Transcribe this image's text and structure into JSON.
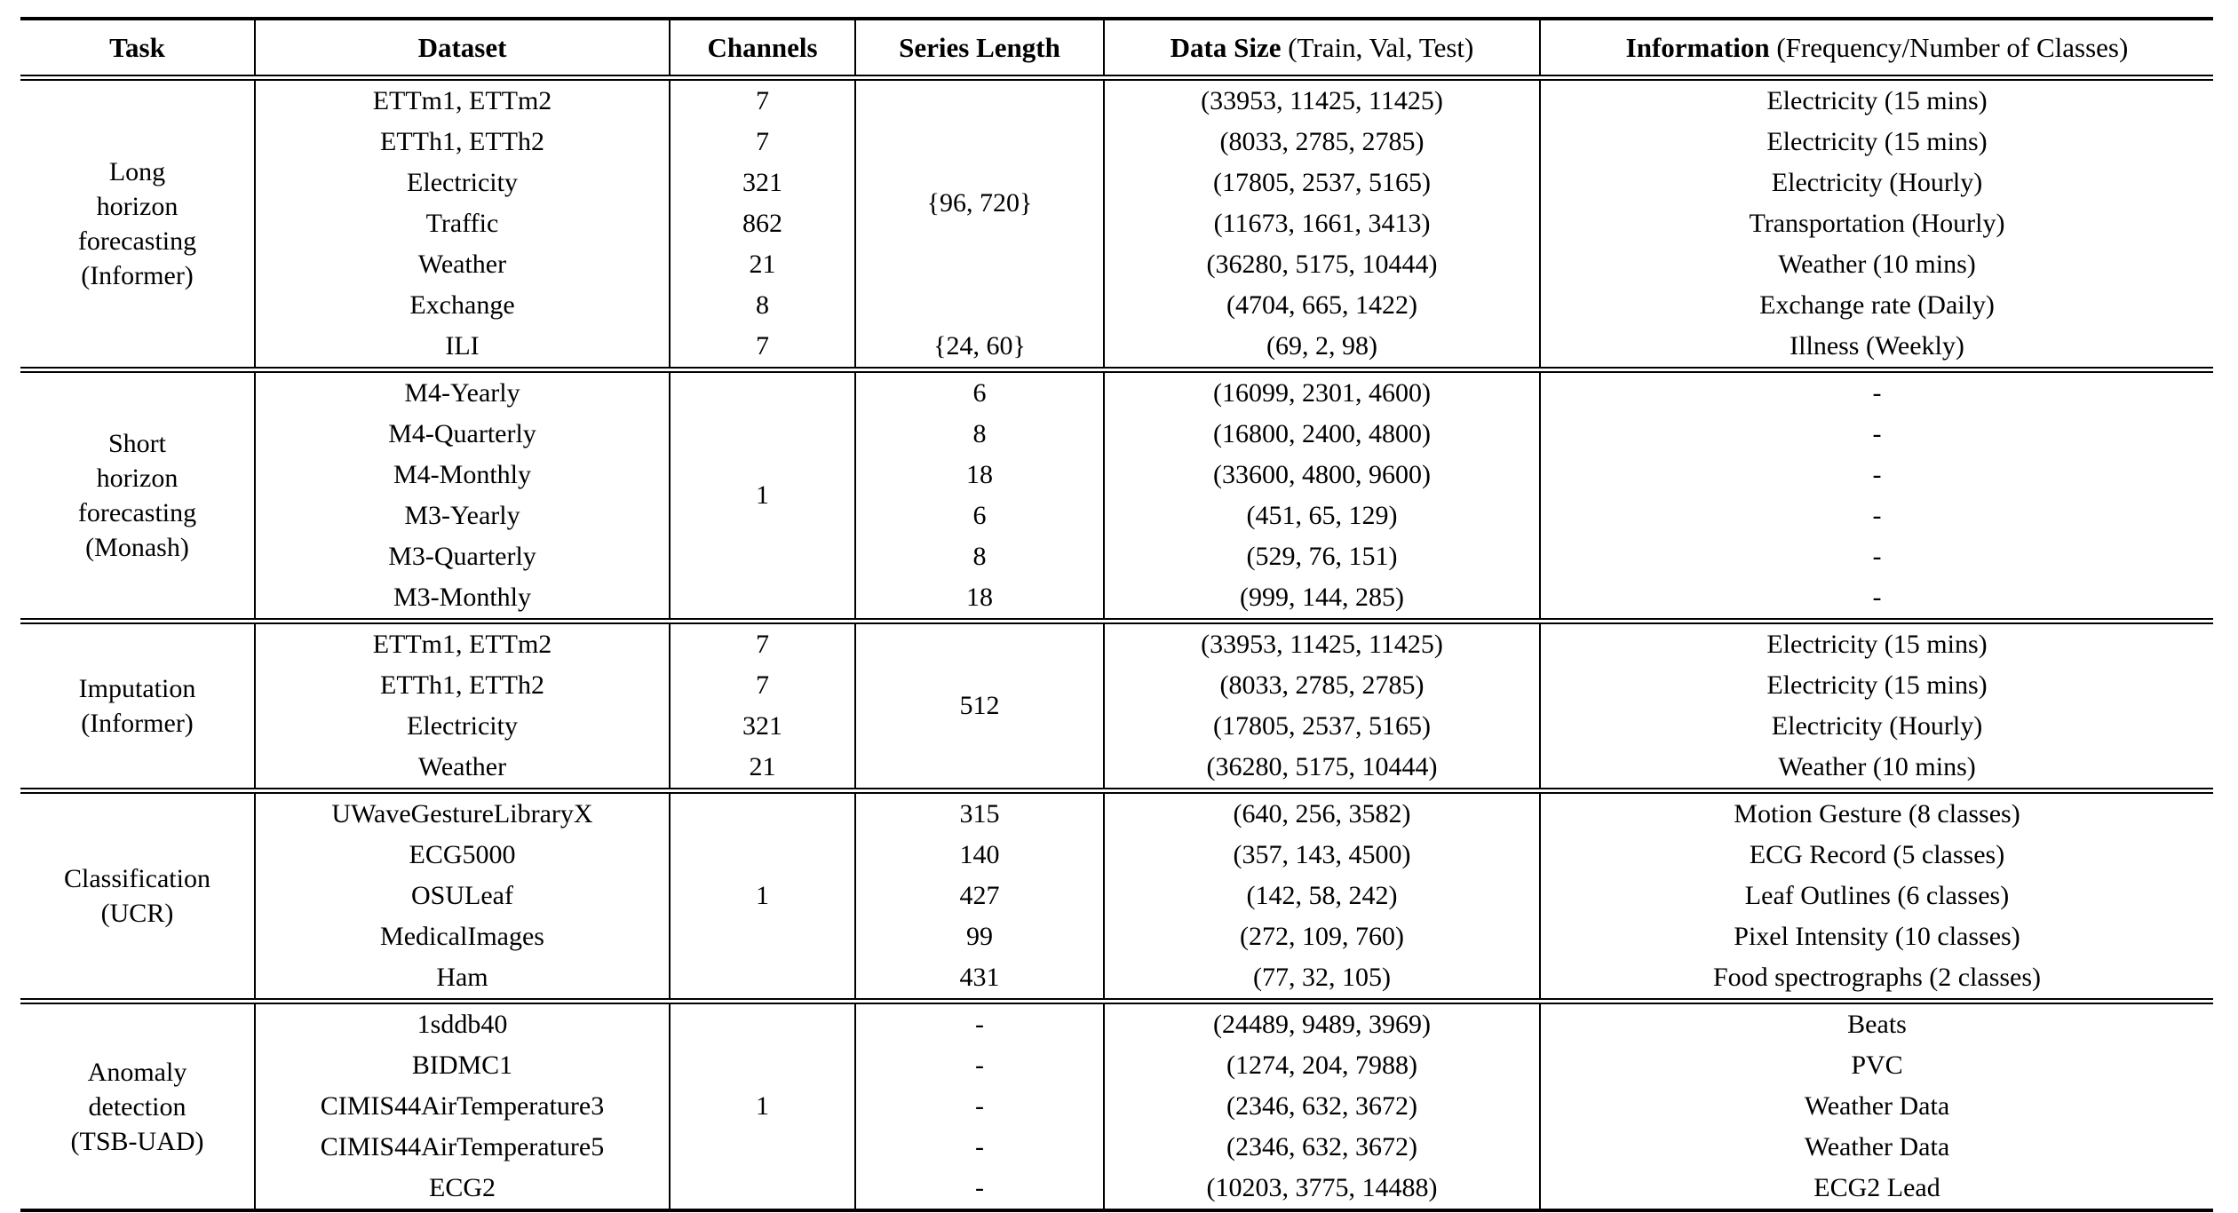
{
  "colors": {
    "background": "#ffffff",
    "text": "#000000",
    "rule": "#000000"
  },
  "table": {
    "header": [
      {
        "bold": "Task",
        "normal": ""
      },
      {
        "bold": "Dataset",
        "normal": ""
      },
      {
        "bold": "Channels",
        "normal": ""
      },
      {
        "bold": "Series Length",
        "normal": ""
      },
      {
        "bold": "Data Size",
        "normal": " (Train, Val, Test)"
      },
      {
        "bold": "Information",
        "normal": " (Frequency/Number of Classes)"
      }
    ],
    "sections": [
      {
        "task_lines": [
          "Long",
          "horizon",
          "forecasting",
          "(Informer)"
        ],
        "rows": 7,
        "columns": {
          "dataset": [
            {
              "t": "ETTm1, ETTm2",
              "s": 1
            },
            {
              "t": "ETTh1, ETTh2",
              "s": 1
            },
            {
              "t": "Electricity",
              "s": 1
            },
            {
              "t": "Traffic",
              "s": 1
            },
            {
              "t": "Weather",
              "s": 1
            },
            {
              "t": "Exchange",
              "s": 1
            },
            {
              "t": "ILI",
              "s": 1
            }
          ],
          "channels": [
            {
              "t": "7",
              "s": 1
            },
            {
              "t": "7",
              "s": 1
            },
            {
              "t": "321",
              "s": 1
            },
            {
              "t": "862",
              "s": 1
            },
            {
              "t": "21",
              "s": 1
            },
            {
              "t": "8",
              "s": 1
            },
            {
              "t": "7",
              "s": 1
            }
          ],
          "series": [
            {
              "t": "{96, 720}",
              "s": 6
            },
            {
              "t": "{24, 60}",
              "s": 1
            }
          ],
          "size": [
            {
              "t": "(33953, 11425, 11425)",
              "s": 1
            },
            {
              "t": "(8033, 2785, 2785)",
              "s": 1
            },
            {
              "t": "(17805, 2537, 5165)",
              "s": 1
            },
            {
              "t": "(11673, 1661, 3413)",
              "s": 1
            },
            {
              "t": "(36280, 5175, 10444)",
              "s": 1
            },
            {
              "t": "(4704, 665, 1422)",
              "s": 1
            },
            {
              "t": "(69, 2, 98)",
              "s": 1
            }
          ],
          "info": [
            {
              "t": "Electricity (15 mins)",
              "s": 1
            },
            {
              "t": "Electricity (15 mins)",
              "s": 1
            },
            {
              "t": "Electricity (Hourly)",
              "s": 1
            },
            {
              "t": "Transportation (Hourly)",
              "s": 1
            },
            {
              "t": "Weather (10 mins)",
              "s": 1
            },
            {
              "t": "Exchange rate (Daily)",
              "s": 1
            },
            {
              "t": "Illness (Weekly)",
              "s": 1
            }
          ]
        }
      },
      {
        "task_lines": [
          "Short",
          "horizon",
          "forecasting",
          "(Monash)"
        ],
        "rows": 6,
        "columns": {
          "dataset": [
            {
              "t": "M4-Yearly",
              "s": 1
            },
            {
              "t": "M4-Quarterly",
              "s": 1
            },
            {
              "t": "M4-Monthly",
              "s": 1
            },
            {
              "t": "M3-Yearly",
              "s": 1
            },
            {
              "t": "M3-Quarterly",
              "s": 1
            },
            {
              "t": "M3-Monthly",
              "s": 1
            }
          ],
          "channels": [
            {
              "t": "1",
              "s": 6
            }
          ],
          "series": [
            {
              "t": "6",
              "s": 1
            },
            {
              "t": "8",
              "s": 1
            },
            {
              "t": "18",
              "s": 1
            },
            {
              "t": "6",
              "s": 1
            },
            {
              "t": "8",
              "s": 1
            },
            {
              "t": "18",
              "s": 1
            }
          ],
          "size": [
            {
              "t": "(16099, 2301, 4600)",
              "s": 1
            },
            {
              "t": "(16800, 2400, 4800)",
              "s": 1
            },
            {
              "t": "(33600, 4800, 9600)",
              "s": 1
            },
            {
              "t": "(451, 65, 129)",
              "s": 1
            },
            {
              "t": "(529, 76, 151)",
              "s": 1
            },
            {
              "t": "(999, 144, 285)",
              "s": 1
            }
          ],
          "info": [
            {
              "t": "-",
              "s": 1
            },
            {
              "t": "-",
              "s": 1
            },
            {
              "t": "-",
              "s": 1
            },
            {
              "t": "-",
              "s": 1
            },
            {
              "t": "-",
              "s": 1
            },
            {
              "t": "-",
              "s": 1
            }
          ]
        }
      },
      {
        "task_lines": [
          "Imputation",
          "(Informer)"
        ],
        "rows": 4,
        "columns": {
          "dataset": [
            {
              "t": "ETTm1, ETTm2",
              "s": 1
            },
            {
              "t": "ETTh1, ETTh2",
              "s": 1
            },
            {
              "t": "Electricity",
              "s": 1
            },
            {
              "t": "Weather",
              "s": 1
            }
          ],
          "channels": [
            {
              "t": "7",
              "s": 1
            },
            {
              "t": "7",
              "s": 1
            },
            {
              "t": "321",
              "s": 1
            },
            {
              "t": "21",
              "s": 1
            }
          ],
          "series": [
            {
              "t": "512",
              "s": 4
            }
          ],
          "size": [
            {
              "t": "(33953, 11425, 11425)",
              "s": 1
            },
            {
              "t": "(8033, 2785, 2785)",
              "s": 1
            },
            {
              "t": "(17805, 2537, 5165)",
              "s": 1
            },
            {
              "t": "(36280, 5175, 10444)",
              "s": 1
            }
          ],
          "info": [
            {
              "t": "Electricity (15 mins)",
              "s": 1
            },
            {
              "t": "Electricity (15 mins)",
              "s": 1
            },
            {
              "t": "Electricity (Hourly)",
              "s": 1
            },
            {
              "t": "Weather (10 mins)",
              "s": 1
            }
          ]
        }
      },
      {
        "task_lines": [
          "Classification",
          "(UCR)"
        ],
        "rows": 5,
        "columns": {
          "dataset": [
            {
              "t": "UWaveGestureLibraryX",
              "s": 1
            },
            {
              "t": "ECG5000",
              "s": 1
            },
            {
              "t": "OSULeaf",
              "s": 1
            },
            {
              "t": "MedicalImages",
              "s": 1
            },
            {
              "t": "Ham",
              "s": 1
            }
          ],
          "channels": [
            {
              "t": "1",
              "s": 5
            }
          ],
          "series": [
            {
              "t": "315",
              "s": 1
            },
            {
              "t": "140",
              "s": 1
            },
            {
              "t": "427",
              "s": 1
            },
            {
              "t": "99",
              "s": 1
            },
            {
              "t": "431",
              "s": 1
            }
          ],
          "size": [
            {
              "t": "(640, 256, 3582)",
              "s": 1
            },
            {
              "t": "(357, 143, 4500)",
              "s": 1
            },
            {
              "t": "(142, 58, 242)",
              "s": 1
            },
            {
              "t": "(272, 109, 760)",
              "s": 1
            },
            {
              "t": "(77, 32, 105)",
              "s": 1
            }
          ],
          "info": [
            {
              "t": "Motion Gesture (8 classes)",
              "s": 1
            },
            {
              "t": "ECG Record (5 classes)",
              "s": 1
            },
            {
              "t": "Leaf Outlines (6 classes)",
              "s": 1
            },
            {
              "t": "Pixel Intensity (10 classes)",
              "s": 1
            },
            {
              "t": "Food spectrographs (2 classes)",
              "s": 1
            }
          ]
        }
      },
      {
        "task_lines": [
          "Anomaly",
          "detection",
          "(TSB-UAD)"
        ],
        "rows": 5,
        "columns": {
          "dataset": [
            {
              "t": "1sddb40",
              "s": 1
            },
            {
              "t": "BIDMC1",
              "s": 1
            },
            {
              "t": "CIMIS44AirTemperature3",
              "s": 1
            },
            {
              "t": "CIMIS44AirTemperature5",
              "s": 1
            },
            {
              "t": "ECG2",
              "s": 1
            }
          ],
          "channels": [
            {
              "t": "1",
              "s": 5
            }
          ],
          "series": [
            {
              "t": "-",
              "s": 1
            },
            {
              "t": "-",
              "s": 1
            },
            {
              "t": "-",
              "s": 1
            },
            {
              "t": "-",
              "s": 1
            },
            {
              "t": "-",
              "s": 1
            }
          ],
          "size": [
            {
              "t": "(24489, 9489, 3969)",
              "s": 1
            },
            {
              "t": "(1274, 204, 7988)",
              "s": 1
            },
            {
              "t": "(2346, 632, 3672)",
              "s": 1
            },
            {
              "t": "(2346, 632, 3672)",
              "s": 1
            },
            {
              "t": "(10203, 3775, 14488)",
              "s": 1
            }
          ],
          "info": [
            {
              "t": "Beats",
              "s": 1
            },
            {
              "t": "PVC",
              "s": 1
            },
            {
              "t": "Weather Data",
              "s": 1
            },
            {
              "t": "Weather Data",
              "s": 1
            },
            {
              "t": "ECG2 Lead",
              "s": 1
            }
          ]
        }
      }
    ]
  }
}
